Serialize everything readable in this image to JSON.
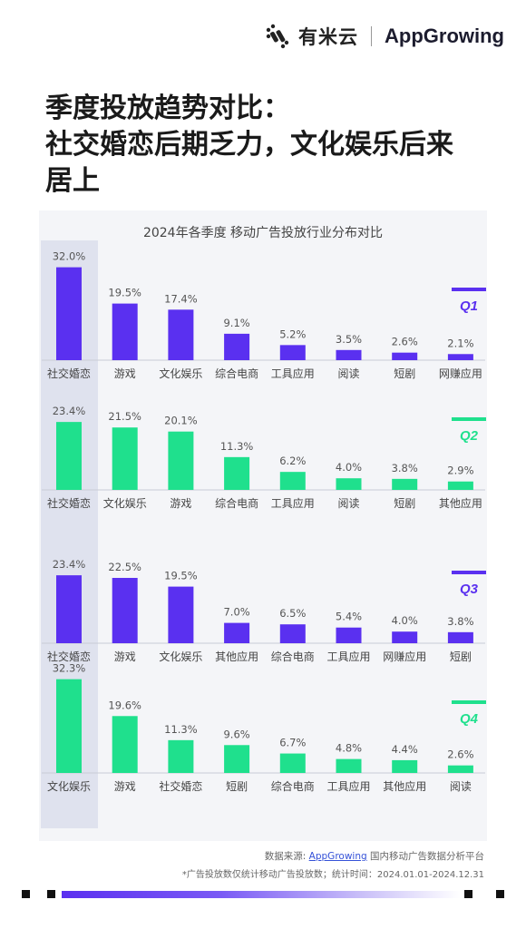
{
  "brand": {
    "name_cn": "有米云",
    "name_en": "AppGrowing"
  },
  "headline": {
    "line1": "季度投放趋势对比：",
    "line2": "社交婚恋后期乏力，文化娱乐后来",
    "line3": "居上"
  },
  "chart_title": "2024年各季度 移动广告投放行业分布对比",
  "colors": {
    "purple": "#5a30f0",
    "green": "#1fe08d",
    "highlight": "#dfe2ee"
  },
  "chart_data": [
    {
      "type": "bar",
      "quarter": "Q1",
      "color": "#5a30f0",
      "categories": [
        "社交婚恋",
        "游戏",
        "文化娱乐",
        "综合电商",
        "工具应用",
        "阅读",
        "短剧",
        "网赚应用"
      ],
      "labels": [
        "32.0%",
        "19.5%",
        "17.4%",
        "9.1%",
        "5.2%",
        "3.5%",
        "2.6%",
        "2.1%"
      ],
      "values": [
        32.0,
        19.5,
        17.4,
        9.1,
        5.2,
        3.5,
        2.6,
        2.1
      ]
    },
    {
      "type": "bar",
      "quarter": "Q2",
      "color": "#1fe08d",
      "categories": [
        "社交婚恋",
        "文化娱乐",
        "游戏",
        "综合电商",
        "工具应用",
        "阅读",
        "短剧",
        "其他应用"
      ],
      "labels": [
        "23.4%",
        "21.5%",
        "20.1%",
        "11.3%",
        "6.2%",
        "4.0%",
        "3.8%",
        "2.9%"
      ],
      "values": [
        23.4,
        21.5,
        20.1,
        11.3,
        6.2,
        4.0,
        3.8,
        2.9
      ]
    },
    {
      "type": "bar",
      "quarter": "Q3",
      "color": "#5a30f0",
      "categories": [
        "社交婚恋",
        "游戏",
        "文化娱乐",
        "其他应用",
        "综合电商",
        "工具应用",
        "网赚应用",
        "短剧"
      ],
      "labels": [
        "23.4%",
        "22.5%",
        "19.5%",
        "7.0%",
        "6.5%",
        "5.4%",
        "4.0%",
        "3.8%"
      ],
      "values": [
        23.4,
        22.5,
        19.5,
        7.0,
        6.5,
        5.4,
        4.0,
        3.8
      ]
    },
    {
      "type": "bar",
      "quarter": "Q4",
      "color": "#1fe08d",
      "categories": [
        "文化娱乐",
        "游戏",
        "社交婚恋",
        "短剧",
        "综合电商",
        "工具应用",
        "其他应用",
        "阅读"
      ],
      "labels": [
        "32.3%",
        "19.6%",
        "11.3%",
        "9.6%",
        "6.7%",
        "4.8%",
        "4.4%",
        "2.6%"
      ],
      "values": [
        32.3,
        19.6,
        11.3,
        9.6,
        6.7,
        4.8,
        4.4,
        2.6
      ]
    }
  ],
  "footer": {
    "source_prefix": "数据来源: ",
    "source_link": "AppGrowing",
    "source_suffix": " 国内移动广告数据分析平台",
    "note": "*广告投放数仅统计移动广告投放数；统计时间：2024.01.01-2024.12.31"
  }
}
